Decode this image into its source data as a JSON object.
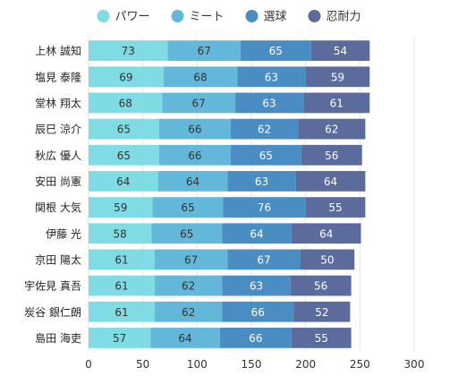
{
  "chart_data": {
    "type": "bar",
    "orientation": "horizontal",
    "stacked": true,
    "title": "",
    "xlabel": "",
    "ylabel": "",
    "xlim": [
      0,
      300
    ],
    "x_ticks": [
      0,
      50,
      100,
      150,
      200,
      250,
      300
    ],
    "grid": "vertical",
    "legend_position": "top",
    "categories": [
      "上林 誠知",
      "塩見 泰隆",
      "堂林 翔太",
      "辰巳 涼介",
      "秋広 優人",
      "安田 尚憲",
      "関根 大気",
      "伊藤 光",
      "京田 陽太",
      "宇佐見 真吾",
      "炭谷 銀仁朗",
      "島田 海吏"
    ],
    "series": [
      {
        "name": "パワー",
        "color": "#7fdbe4",
        "label_color": "#333333",
        "values": [
          73,
          69,
          68,
          65,
          65,
          64,
          59,
          58,
          61,
          61,
          61,
          57
        ]
      },
      {
        "name": "ミート",
        "color": "#63b8d9",
        "label_color": "#333333",
        "values": [
          67,
          68,
          67,
          66,
          66,
          64,
          65,
          65,
          67,
          62,
          62,
          64
        ]
      },
      {
        "name": "選球",
        "color": "#4a8dc3",
        "label_color": "#ffffff",
        "values": [
          65,
          63,
          63,
          62,
          65,
          63,
          76,
          64,
          67,
          63,
          66,
          66
        ]
      },
      {
        "name": "忍耐力",
        "color": "#5a6b9c",
        "label_color": "#ffffff",
        "values": [
          54,
          59,
          61,
          62,
          56,
          64,
          55,
          64,
          50,
          56,
          52,
          55
        ]
      }
    ]
  }
}
